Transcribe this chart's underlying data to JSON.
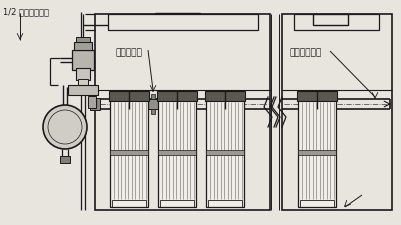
{
  "bg_color": "#e8e4de",
  "line_color": "#1a1a1a",
  "label_1": "1/2 双膜片脉冲阀",
  "label_2": "免工具联结",
  "label_3": "套筒固定吹管",
  "fig_width": 4.01,
  "fig_height": 2.26,
  "dpi": 100
}
